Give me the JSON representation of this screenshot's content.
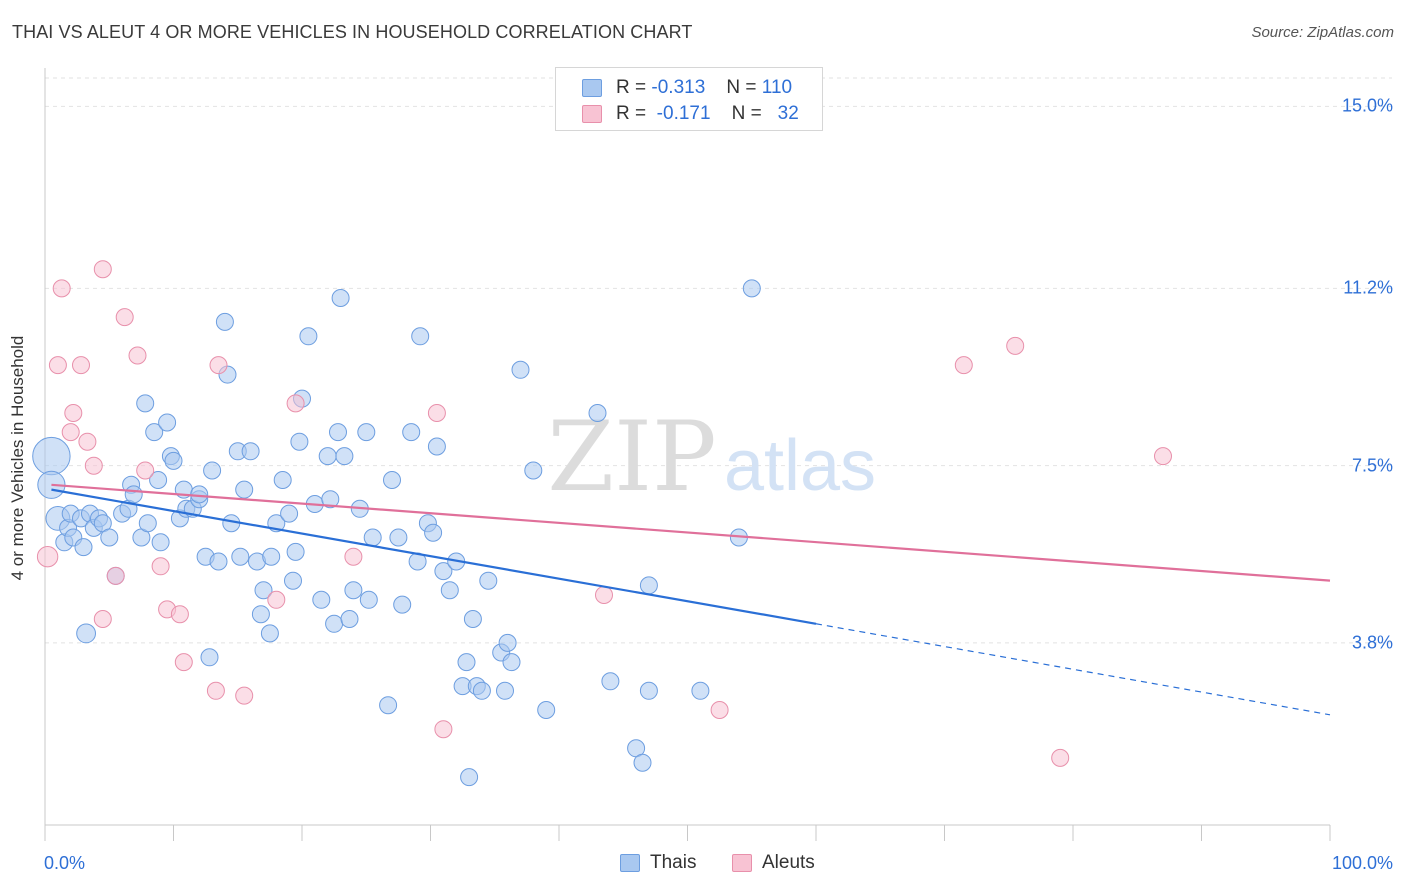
{
  "header": {
    "title": "THAI VS ALEUT 4 OR MORE VEHICLES IN HOUSEHOLD CORRELATION CHART",
    "source": "Source: ZipAtlas.com"
  },
  "watermark": {
    "zip": "ZIP",
    "atlas": "atlas"
  },
  "legend": {
    "rows": [
      {
        "r_label": "R =",
        "r_value": "-0.313",
        "n_label": "N =",
        "n_value": "110",
        "color": "#a9c8f0",
        "border": "#6d9ee0"
      },
      {
        "r_label": "R =",
        "r_value": "-0.171",
        "n_label": "N =",
        "n_value": "32",
        "color": "#f8c3d3",
        "border": "#e890ab"
      }
    ]
  },
  "bottom_legend": [
    {
      "label": "Thais",
      "color": "#a9c8f0",
      "border": "#6d9ee0"
    },
    {
      "label": "Aleuts",
      "color": "#f8c3d3",
      "border": "#e890ab"
    }
  ],
  "chart_data": {
    "type": "scatter",
    "title": "THAI VS ALEUT 4 OR MORE VEHICLES IN HOUSEHOLD CORRELATION CHART",
    "xlabel": "",
    "ylabel": "4 or more Vehicles in Household",
    "xlim": [
      0,
      100
    ],
    "ylim": [
      0,
      15.8
    ],
    "x_tick_labels": [
      "0.0%",
      "100.0%"
    ],
    "y_ticks": [
      3.8,
      7.5,
      11.2,
      15.0
    ],
    "y_tick_labels": [
      "3.8%",
      "7.5%",
      "11.2%",
      "15.0%"
    ],
    "grid": "horizontal dashed",
    "legend_position": "top-center",
    "colors": {
      "thais": "#6d9ee0",
      "thais_fill": "#a9c8f0",
      "aleuts": "#e890ab",
      "aleuts_fill": "#f8c3d3",
      "thais_line": "#2a6fd6",
      "aleuts_line": "#e0709a"
    },
    "series": [
      {
        "name": "Thais",
        "r": -0.313,
        "n": 110,
        "trend": {
          "x0": 0.5,
          "y0": 7.0,
          "x1": 60,
          "y1": 4.2,
          "dash_to_x": 100,
          "dash_to_y": 2.3
        },
        "points": [
          [
            0.5,
            7.7,
            2.2
          ],
          [
            0.5,
            7.1,
            1.6
          ],
          [
            1,
            6.4,
            1.4
          ],
          [
            1.5,
            5.9,
            1
          ],
          [
            1.8,
            6.2,
            1
          ],
          [
            2,
            6.5,
            1
          ],
          [
            2.2,
            6.0,
            1
          ],
          [
            2.8,
            6.4,
            1
          ],
          [
            3.0,
            5.8,
            1
          ],
          [
            3.2,
            4.0,
            1.1
          ],
          [
            3.5,
            6.5,
            1
          ],
          [
            3.8,
            6.2,
            1
          ],
          [
            4.2,
            6.4,
            1
          ],
          [
            4.5,
            6.3,
            1
          ],
          [
            5,
            6.0,
            1
          ],
          [
            5.5,
            5.2,
            1
          ],
          [
            6,
            6.5,
            1
          ],
          [
            6.5,
            6.6,
            1
          ],
          [
            6.7,
            7.1,
            1
          ],
          [
            6.9,
            6.9,
            1
          ],
          [
            7.5,
            6.0,
            1
          ],
          [
            7.8,
            8.8,
            1
          ],
          [
            8,
            6.3,
            1
          ],
          [
            8.5,
            8.2,
            1
          ],
          [
            8.8,
            7.2,
            1
          ],
          [
            9,
            5.9,
            1
          ],
          [
            9.5,
            8.4,
            1
          ],
          [
            9.8,
            7.7,
            1
          ],
          [
            10,
            7.6,
            1
          ],
          [
            10.5,
            6.4,
            1
          ],
          [
            10.8,
            7.0,
            1
          ],
          [
            11,
            6.6,
            1
          ],
          [
            11.5,
            6.6,
            1
          ],
          [
            12,
            6.8,
            1
          ],
          [
            12,
            6.9,
            1
          ],
          [
            12.5,
            5.6,
            1
          ],
          [
            12.8,
            3.5,
            1
          ],
          [
            13,
            7.4,
            1
          ],
          [
            13.5,
            5.5,
            1
          ],
          [
            14,
            10.5,
            1
          ],
          [
            14.2,
            9.4,
            1
          ],
          [
            14.5,
            6.3,
            1
          ],
          [
            15,
            7.8,
            1
          ],
          [
            15.2,
            5.6,
            1
          ],
          [
            15.5,
            7.0,
            1
          ],
          [
            16,
            7.8,
            1
          ],
          [
            16.5,
            5.5,
            1
          ],
          [
            16.8,
            4.4,
            1
          ],
          [
            17,
            4.9,
            1
          ],
          [
            17.5,
            4.0,
            1
          ],
          [
            17.6,
            5.6,
            1
          ],
          [
            18,
            6.3,
            1
          ],
          [
            18.5,
            7.2,
            1
          ],
          [
            19,
            6.5,
            1
          ],
          [
            19.3,
            5.1,
            1
          ],
          [
            19.5,
            5.7,
            1
          ],
          [
            19.8,
            8.0,
            1
          ],
          [
            20,
            8.9,
            1
          ],
          [
            20.5,
            10.2,
            1
          ],
          [
            21,
            6.7,
            1
          ],
          [
            21.5,
            4.7,
            1
          ],
          [
            22,
            7.7,
            1
          ],
          [
            22.2,
            6.8,
            1
          ],
          [
            22.5,
            4.2,
            1
          ],
          [
            22.8,
            8.2,
            1
          ],
          [
            23,
            11.0,
            1
          ],
          [
            23.3,
            7.7,
            1
          ],
          [
            23.7,
            4.3,
            1
          ],
          [
            24,
            4.9,
            1
          ],
          [
            24.5,
            6.6,
            1
          ],
          [
            25,
            8.2,
            1
          ],
          [
            25.2,
            4.7,
            1
          ],
          [
            25.5,
            6.0,
            1
          ],
          [
            27,
            7.2,
            1
          ],
          [
            27.5,
            6.0,
            1
          ],
          [
            27.8,
            4.6,
            1
          ],
          [
            28.5,
            8.2,
            1
          ],
          [
            29,
            5.5,
            1
          ],
          [
            29.2,
            10.2,
            1
          ],
          [
            29.8,
            6.3,
            1
          ],
          [
            30.5,
            7.9,
            1
          ],
          [
            30.2,
            6.1,
            1
          ],
          [
            31,
            5.3,
            1
          ],
          [
            31.5,
            4.9,
            1
          ],
          [
            32,
            5.5,
            1
          ],
          [
            32.5,
            2.9,
            1
          ],
          [
            32.8,
            3.4,
            1
          ],
          [
            33,
            1.0,
            1
          ],
          [
            33.3,
            4.3,
            1
          ],
          [
            33.6,
            2.9,
            1
          ],
          [
            34,
            2.8,
            1
          ],
          [
            34.5,
            5.1,
            1
          ],
          [
            35.5,
            3.6,
            1
          ],
          [
            35.8,
            2.8,
            1
          ],
          [
            36,
            3.8,
            1
          ],
          [
            36.3,
            3.4,
            1
          ],
          [
            37,
            9.5,
            1
          ],
          [
            38,
            7.4,
            1
          ],
          [
            39,
            2.4,
            1
          ],
          [
            43,
            8.6,
            1
          ],
          [
            44,
            3.0,
            1
          ],
          [
            46,
            1.6,
            1
          ],
          [
            46.5,
            1.3,
            1
          ],
          [
            47,
            2.8,
            1
          ],
          [
            47,
            5.0,
            1
          ],
          [
            51,
            2.8,
            1
          ],
          [
            54,
            6.0,
            1
          ],
          [
            55,
            11.2,
            1
          ],
          [
            26.7,
            2.5,
            1
          ]
        ]
      },
      {
        "name": "Aleuts",
        "r": -0.171,
        "n": 32,
        "trend": {
          "x0": 0.5,
          "y0": 7.1,
          "x1": 100,
          "y1": 5.1
        },
        "points": [
          [
            0.2,
            5.6,
            1.2
          ],
          [
            1,
            9.6,
            1
          ],
          [
            1.3,
            11.2,
            1
          ],
          [
            2,
            8.2,
            1
          ],
          [
            2.2,
            8.6,
            1
          ],
          [
            2.8,
            9.6,
            1
          ],
          [
            3.3,
            8.0,
            1
          ],
          [
            3.8,
            7.5,
            1
          ],
          [
            4.5,
            4.3,
            1
          ],
          [
            5.5,
            5.2,
            1
          ],
          [
            6.2,
            10.6,
            1
          ],
          [
            4.5,
            11.6,
            1
          ],
          [
            7.2,
            9.8,
            1
          ],
          [
            7.8,
            7.4,
            1
          ],
          [
            9,
            5.4,
            1
          ],
          [
            9.5,
            4.5,
            1
          ],
          [
            10.5,
            4.4,
            1
          ],
          [
            10.8,
            3.4,
            1
          ],
          [
            13.5,
            9.6,
            1
          ],
          [
            13.3,
            2.8,
            1
          ],
          [
            15.5,
            2.7,
            1
          ],
          [
            18,
            4.7,
            1
          ],
          [
            19.5,
            8.8,
            1
          ],
          [
            24,
            5.6,
            1
          ],
          [
            30.5,
            8.6,
            1
          ],
          [
            31,
            2.0,
            1
          ],
          [
            43.5,
            4.8,
            1
          ],
          [
            52.5,
            2.4,
            1
          ],
          [
            71.5,
            9.6,
            1
          ],
          [
            75.5,
            10.0,
            1
          ],
          [
            87,
            7.7,
            1
          ],
          [
            79,
            1.4,
            1
          ]
        ]
      }
    ]
  }
}
